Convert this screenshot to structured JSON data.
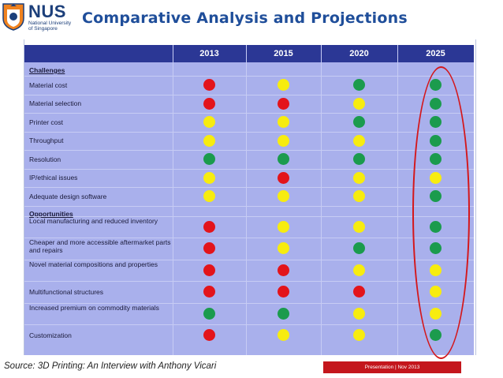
{
  "header": {
    "logo_text": "NUS",
    "logo_subtext": "National University of Singapore",
    "title": "Comparative Analysis and Projections"
  },
  "table": {
    "years": [
      "2013",
      "2015",
      "2020",
      "2025"
    ],
    "colors": {
      "red": "#e3141b",
      "yellow": "#f7ec0f",
      "green": "#1b9b4d",
      "header_bg": "#2b3795",
      "table_bg": "#a9b0ec"
    },
    "sections": [
      {
        "title": "Challenges",
        "rows": [
          {
            "label": "Material cost",
            "ratings": [
              "red",
              "yellow",
              "green",
              "green"
            ]
          },
          {
            "label": "Material selection",
            "ratings": [
              "red",
              "red",
              "yellow",
              "green"
            ]
          },
          {
            "label": "Printer cost",
            "ratings": [
              "yellow",
              "yellow",
              "green",
              "green"
            ]
          },
          {
            "label": "Throughput",
            "ratings": [
              "yellow",
              "yellow",
              "yellow",
              "green"
            ]
          },
          {
            "label": "Resolution",
            "ratings": [
              "green",
              "green",
              "green",
              "green"
            ]
          },
          {
            "label": "IP/ethical issues",
            "ratings": [
              "yellow",
              "red",
              "yellow",
              "yellow"
            ]
          },
          {
            "label": "Adequate design software",
            "ratings": [
              "yellow",
              "yellow",
              "yellow",
              "green"
            ]
          }
        ]
      },
      {
        "title": "Opportunities",
        "rows": [
          {
            "label": "Local manufacturing and reduced inventory",
            "ratings": [
              "red",
              "yellow",
              "yellow",
              "green"
            ]
          },
          {
            "label": "Cheaper and more accessible aftermarket parts and repairs",
            "ratings": [
              "red",
              "yellow",
              "green",
              "green"
            ]
          },
          {
            "label": "Novel material compositions and properties",
            "ratings": [
              "red",
              "red",
              "yellow",
              "yellow"
            ]
          },
          {
            "label": "Multifunctional structures",
            "ratings": [
              "red",
              "red",
              "red",
              "yellow"
            ]
          },
          {
            "label": "Increased premium on commodity materials",
            "ratings": [
              "green",
              "green",
              "yellow",
              "yellow"
            ]
          },
          {
            "label": "Customization",
            "ratings": [
              "red",
              "yellow",
              "yellow",
              "green"
            ]
          }
        ]
      }
    ]
  },
  "footer": {
    "source": "Source: 3D Printing: An Interview with Anthony Vicari",
    "badge": "Presentation | Nov 2013"
  }
}
